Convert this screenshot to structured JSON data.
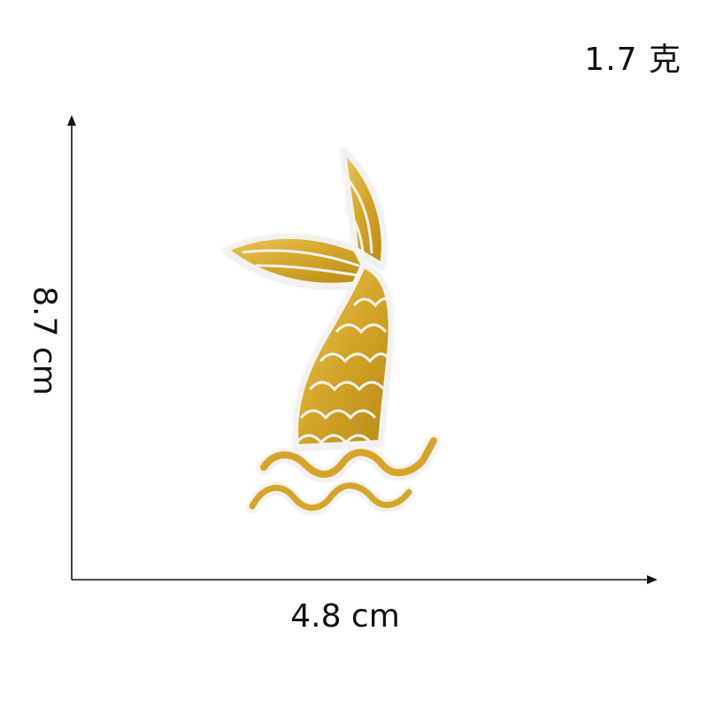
{
  "product": {
    "weight_label": "1.7 克",
    "width_label": "4.8 cm",
    "height_label": "8.7 cm"
  },
  "colors": {
    "gold": "#d4a52a",
    "gold_light": "#e8c55a",
    "gold_dark": "#a87c12",
    "outline": "#f4f2ee",
    "axis": "#111111"
  }
}
